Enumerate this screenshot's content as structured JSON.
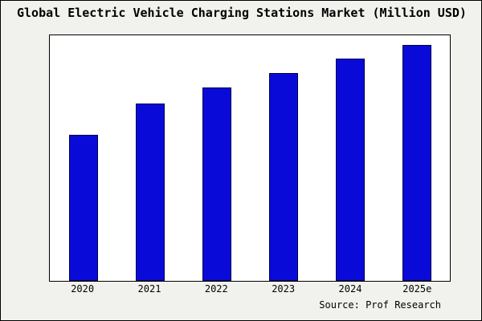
{
  "title": "Global Electric Vehicle Charging Stations Market (Million USD)",
  "source": "Source: Prof Research",
  "chart_data": {
    "type": "bar",
    "title": "Global Electric Vehicle Charging Stations Market (Million USD)",
    "categories": [
      "2020",
      "2021",
      "2022",
      "2023",
      "2024",
      "2025e"
    ],
    "values": [
      62,
      75,
      82,
      88,
      94,
      100
    ],
    "values_note": "relative bar heights estimated from pixels; no y-axis scale is shown in the chart",
    "xlabel": "",
    "ylabel": "",
    "ylim": [
      0,
      104
    ],
    "grid": false,
    "legend": false,
    "bar_color": "#0a0ad8",
    "bar_border_color": "#000050",
    "plot_background": "#ffffff",
    "page_background": "#f1f1ee"
  }
}
